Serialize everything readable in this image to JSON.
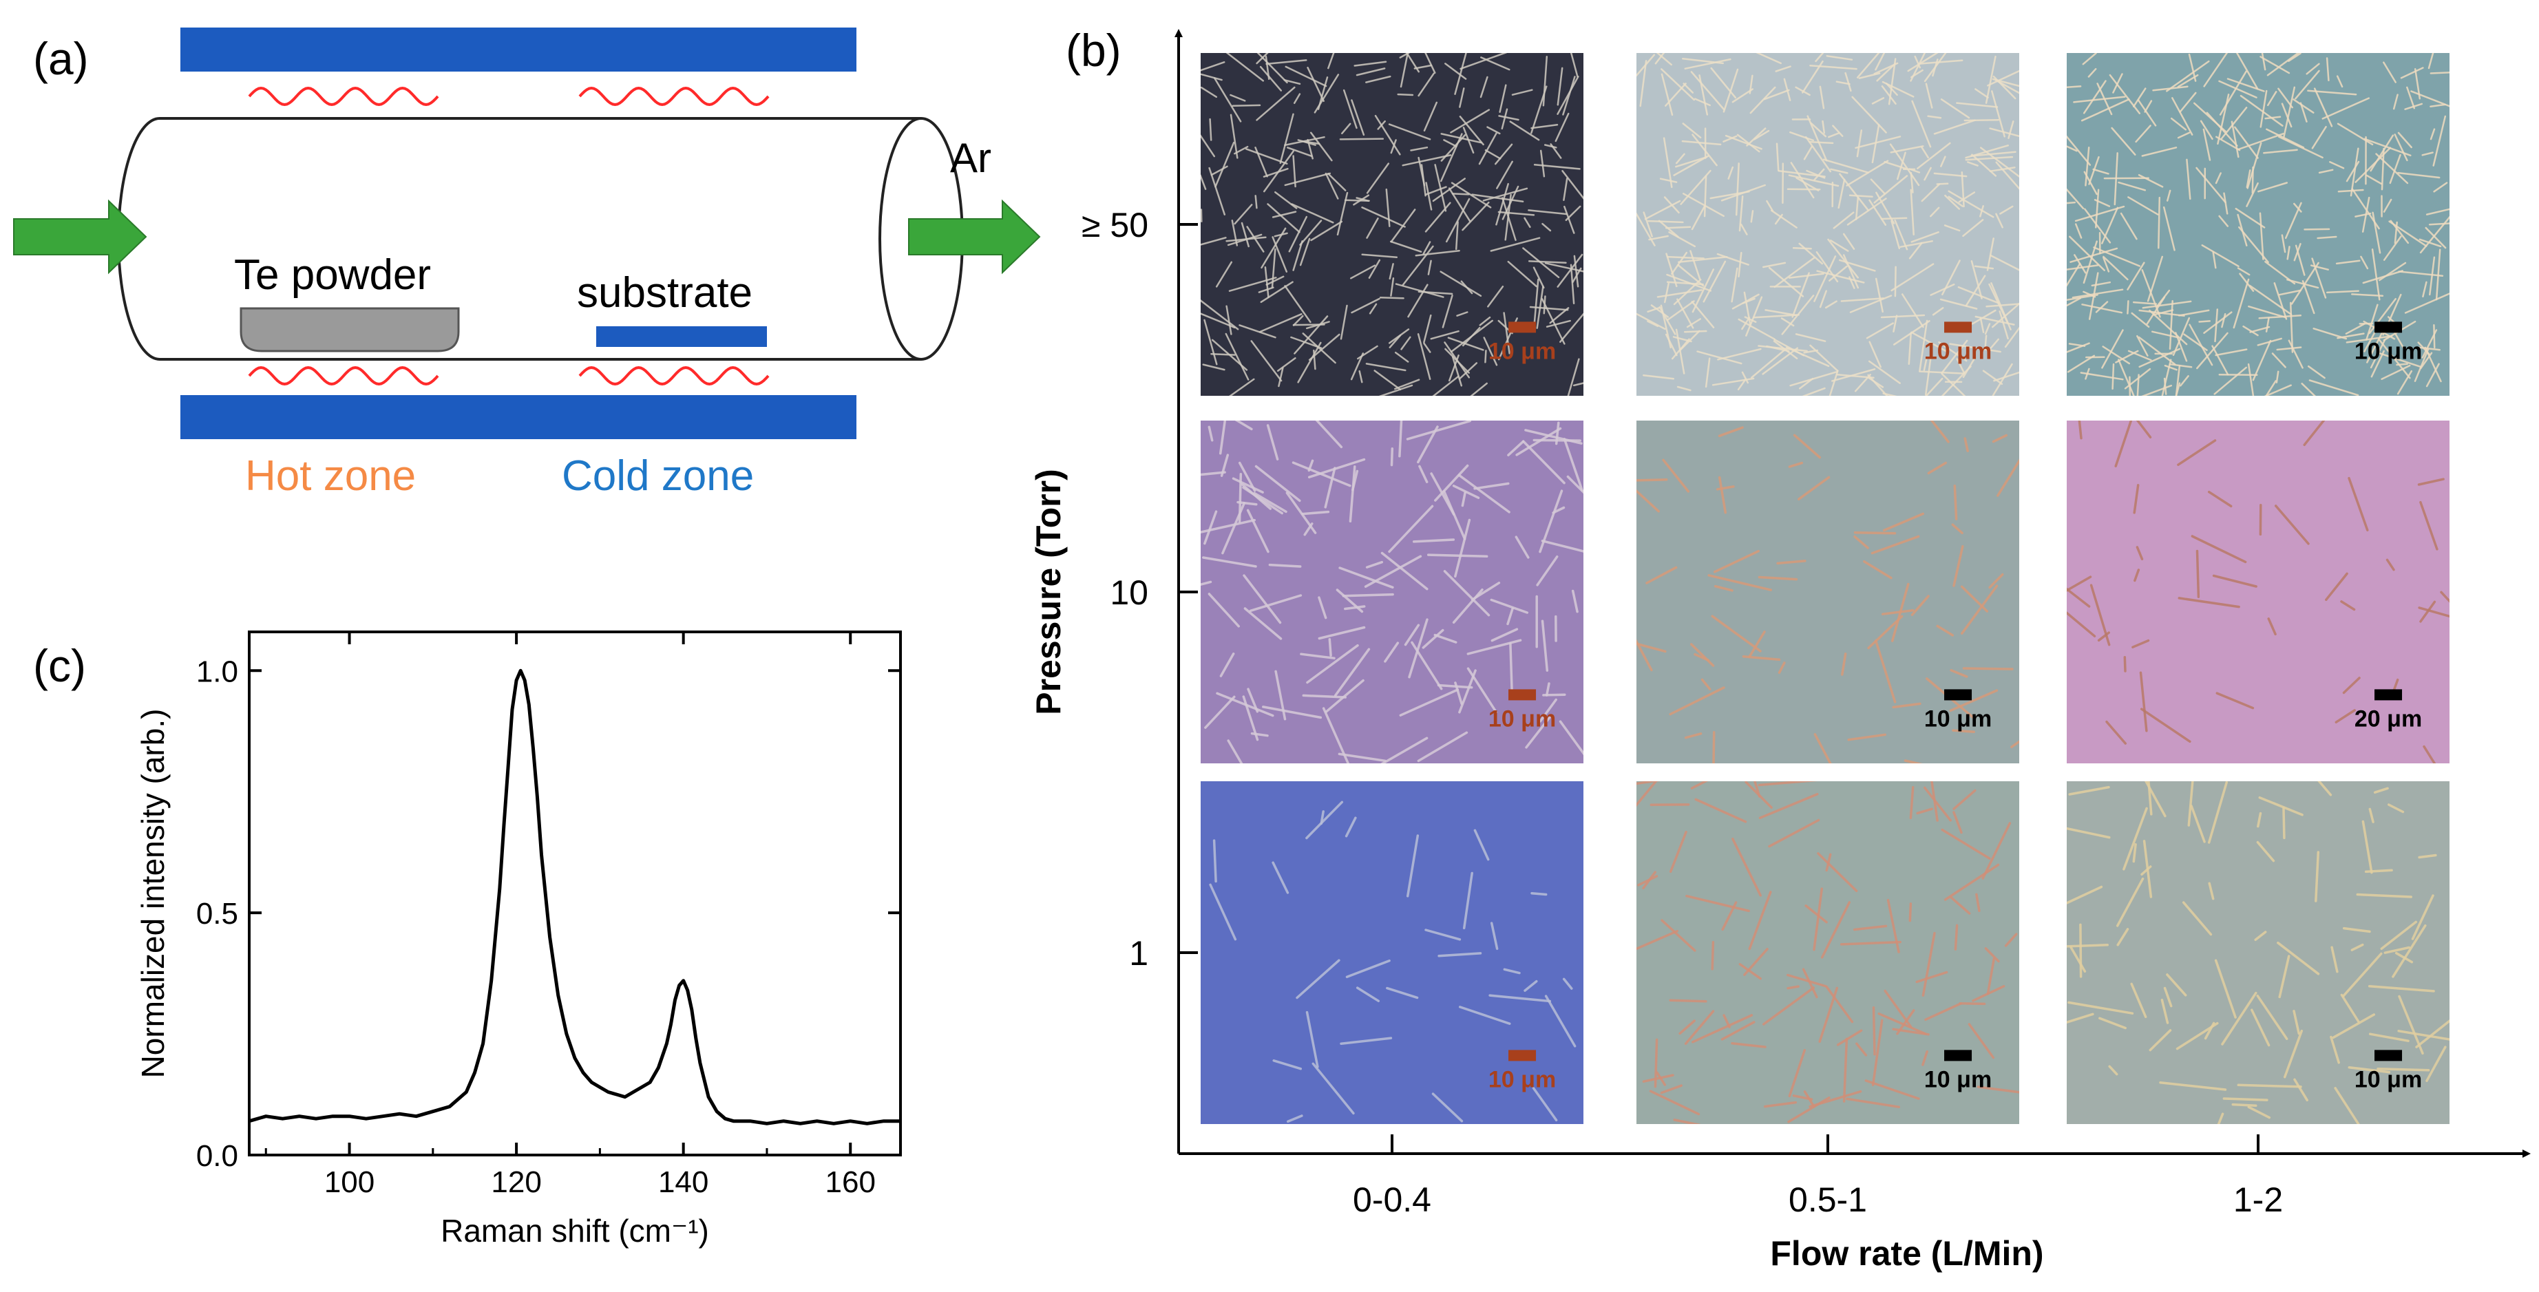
{
  "panel_a": {
    "label": "(a)",
    "gas_label": "Ar",
    "source_label": "Te powder",
    "substrate_label": "substrate",
    "hot_zone_label": "Hot zone",
    "cold_zone_label": "Cold zone",
    "colors": {
      "heater": "#1c5bbf",
      "coil": "#ff2a2a",
      "arrow": "#3aa63a",
      "boat": "#9a9a9a",
      "substrate": "#1c5bbf",
      "hot_zone": "#f58a45",
      "cold_zone": "#1f78c8"
    }
  },
  "panel_b": {
    "label": "(b)",
    "y_axis_title": "Pressure (Torr)",
    "x_axis_title": "Flow rate (L/Min)",
    "y_ticks": [
      "≥ 50",
      "10",
      "1"
    ],
    "x_ticks": [
      "0-0.4",
      "0.5-1",
      "1-2"
    ],
    "images": [
      {
        "row": "≥ 50",
        "col": "0-0.4",
        "scale_bar": "10 μm",
        "bg": "#2f3140",
        "wire": "#cfcac0",
        "bar": "#a8401c"
      },
      {
        "row": "≥ 50",
        "col": "0.5-1",
        "scale_bar": "10 μm",
        "bg": "#b6c2c8",
        "wire": "#ece0c8",
        "bar": "#a8401c"
      },
      {
        "row": "≥ 50",
        "col": "1-2",
        "scale_bar": "10 μm",
        "bg": "#7fa3aa",
        "wire": "#efdcc0",
        "bar": "#000000"
      },
      {
        "row": "10",
        "col": "0-0.4",
        "scale_bar": "10 μm",
        "bg": "#9a82b8",
        "wire": "#d6cad8",
        "bar": "#a8401c"
      },
      {
        "row": "10",
        "col": "0.5-1",
        "scale_bar": "10 μm",
        "bg": "#98a8a8",
        "wire": "#d79a7a",
        "bar": "#000000"
      },
      {
        "row": "10",
        "col": "1-2",
        "scale_bar": "20 μm",
        "bg": "#c89ac4",
        "wire": "#b97a68",
        "bar": "#000000"
      },
      {
        "row": "1",
        "col": "0-0.4",
        "scale_bar": "10 μm",
        "bg": "#5d6ec2",
        "wire": "#b8bed8",
        "bar": "#a8401c"
      },
      {
        "row": "1",
        "col": "0.5-1",
        "scale_bar": "10 μm",
        "bg": "#9aaba6",
        "wire": "#d28f78",
        "bar": "#000000"
      },
      {
        "row": "1",
        "col": "1-2",
        "scale_bar": "10 μm",
        "bg": "#a2aeaa",
        "wire": "#e2cfa0",
        "bar": "#000000"
      }
    ]
  },
  "panel_c": {
    "label": "(c)",
    "chart_data": {
      "type": "line",
      "title": "",
      "xlabel": "Raman shift (cm⁻¹)",
      "ylabel": "Normalized intensity (arb.)",
      "xlim": [
        88,
        166
      ],
      "ylim": [
        0,
        1.08
      ],
      "x_ticks": [
        "100",
        "120",
        "140",
        "160"
      ],
      "y_ticks": [
        "0.0",
        "0.5",
        "1.0"
      ],
      "grid": false,
      "series": [
        {
          "x": [
            88,
            90,
            92,
            94,
            96,
            98,
            100,
            102,
            104,
            106,
            108,
            110,
            112,
            114,
            115,
            116,
            117,
            118,
            118.5,
            119,
            119.5,
            120,
            120.5,
            121,
            121.5,
            122,
            122.5,
            123,
            124,
            125,
            126,
            127,
            128,
            129,
            130,
            131,
            132,
            133,
            134,
            135,
            136,
            137,
            138,
            138.5,
            139,
            139.5,
            140,
            140.5,
            141,
            141.5,
            142,
            143,
            144,
            145,
            146,
            148,
            150,
            152,
            154,
            156,
            158,
            160,
            162,
            164,
            166
          ],
          "y": [
            0.07,
            0.08,
            0.075,
            0.08,
            0.075,
            0.08,
            0.08,
            0.075,
            0.08,
            0.085,
            0.08,
            0.09,
            0.1,
            0.13,
            0.17,
            0.23,
            0.36,
            0.55,
            0.68,
            0.8,
            0.92,
            0.98,
            1.0,
            0.98,
            0.93,
            0.84,
            0.74,
            0.62,
            0.45,
            0.33,
            0.25,
            0.2,
            0.17,
            0.15,
            0.14,
            0.13,
            0.125,
            0.12,
            0.13,
            0.14,
            0.15,
            0.18,
            0.23,
            0.27,
            0.32,
            0.35,
            0.36,
            0.34,
            0.3,
            0.24,
            0.19,
            0.12,
            0.09,
            0.075,
            0.07,
            0.07,
            0.065,
            0.07,
            0.065,
            0.07,
            0.065,
            0.07,
            0.065,
            0.07,
            0.07
          ]
        }
      ]
    }
  }
}
